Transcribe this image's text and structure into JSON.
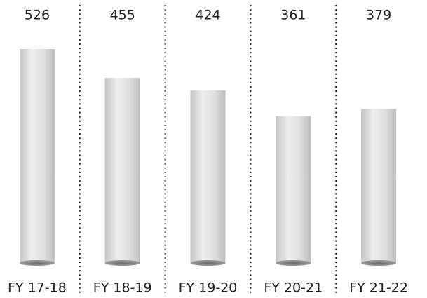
{
  "chart_data": {
    "type": "bar",
    "categories": [
      "FY 17-18",
      "FY 18-19",
      "FY 19-20",
      "FY 20-21",
      "FY 21-22"
    ],
    "values": [
      526,
      455,
      424,
      361,
      379
    ]
  }
}
